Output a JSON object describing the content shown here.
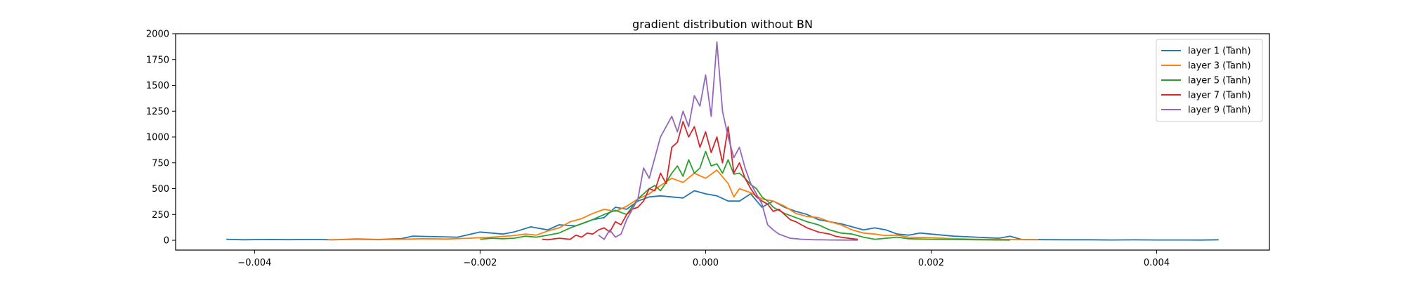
{
  "chart_data": {
    "type": "line",
    "title": "gradient distribution without BN",
    "xlabel": "",
    "ylabel": "",
    "xlim": [
      -0.0047,
      0.005
    ],
    "ylim": [
      -95,
      2000
    ],
    "xticks": [
      -0.004,
      -0.002,
      0.0,
      0.002,
      0.004
    ],
    "xtick_labels": [
      "−0.004",
      "−0.002",
      "0.000",
      "0.002",
      "0.004"
    ],
    "yticks": [
      0,
      250,
      500,
      750,
      1000,
      1250,
      1500,
      1750,
      2000
    ],
    "ytick_labels": [
      "0",
      "250",
      "500",
      "750",
      "1000",
      "1250",
      "1500",
      "1750",
      "2000"
    ],
    "grid": false,
    "legend_position": "top-right",
    "series": [
      {
        "name": "layer 1 (Tanh)",
        "color": "#1f77b4",
        "x": [
          -0.00425,
          -0.0041,
          -0.0039,
          -0.0037,
          -0.0035,
          -0.0033,
          -0.0031,
          -0.0029,
          -0.0027,
          -0.0026,
          -0.0024,
          -0.0022,
          -0.002,
          -0.0019,
          -0.0018,
          -0.0017,
          -0.00155,
          -0.0014,
          -0.0013,
          -0.00115,
          -0.001,
          -0.0009,
          -0.0008,
          -0.0007,
          -0.0006,
          -0.0005,
          -0.0004,
          -0.0003,
          -0.0002,
          -0.0001,
          0.0,
          0.0001,
          0.0002,
          0.0003,
          0.0004,
          0.0005,
          0.0006,
          0.0007,
          0.0008,
          0.0009,
          0.001,
          0.0011,
          0.0012,
          0.0013,
          0.0014,
          0.0015,
          0.0016,
          0.0017,
          0.0018,
          0.0019,
          0.002,
          0.0022,
          0.0024,
          0.0026,
          0.0027,
          0.0028,
          0.003,
          0.0032,
          0.0034,
          0.0036,
          0.0038,
          0.004,
          0.0042,
          0.0044,
          0.00455
        ],
        "y": [
          10,
          5,
          8,
          6,
          8,
          5,
          12,
          8,
          15,
          40,
          35,
          30,
          80,
          70,
          60,
          80,
          130,
          100,
          150,
          140,
          200,
          220,
          320,
          300,
          380,
          420,
          430,
          420,
          410,
          480,
          450,
          430,
          380,
          380,
          450,
          320,
          380,
          320,
          280,
          250,
          200,
          180,
          160,
          130,
          100,
          120,
          100,
          60,
          50,
          70,
          60,
          40,
          30,
          20,
          40,
          8,
          6,
          5,
          5,
          3,
          4,
          3,
          3,
          2,
          5
        ]
      },
      {
        "name": "layer 3 (Tanh)",
        "color": "#ff7f0e",
        "x": [
          -0.00335,
          -0.0031,
          -0.0029,
          -0.0027,
          -0.0025,
          -0.0023,
          -0.0021,
          -0.0019,
          -0.0017,
          -0.0016,
          -0.0015,
          -0.0014,
          -0.0013,
          -0.0012,
          -0.0011,
          -0.001,
          -0.0009,
          -0.0008,
          -0.0007,
          -0.0006,
          -0.0005,
          -0.0004,
          -0.0003,
          -0.0002,
          -0.0001,
          0.0,
          0.0001,
          0.0002,
          0.00025,
          0.0003,
          0.0004,
          0.0005,
          0.0006,
          0.0007,
          0.0008,
          0.0009,
          0.001,
          0.0011,
          0.0012,
          0.0013,
          0.0014,
          0.0015,
          0.0016,
          0.0017,
          0.0018,
          0.002,
          0.0022,
          0.0024,
          0.0026,
          0.0028,
          0.00295
        ],
        "y": [
          5,
          8,
          6,
          10,
          15,
          12,
          20,
          30,
          45,
          60,
          50,
          90,
          120,
          180,
          210,
          260,
          300,
          280,
          330,
          400,
          450,
          530,
          600,
          560,
          650,
          600,
          680,
          550,
          420,
          500,
          460,
          400,
          380,
          330,
          260,
          230,
          220,
          180,
          150,
          100,
          70,
          60,
          45,
          50,
          30,
          25,
          15,
          10,
          8,
          6,
          4
        ]
      },
      {
        "name": "layer 5 (Tanh)",
        "color": "#2ca02c",
        "x": [
          -0.002,
          -0.0019,
          -0.0018,
          -0.0017,
          -0.0016,
          -0.0015,
          -0.0014,
          -0.0013,
          -0.0012,
          -0.0011,
          -0.001,
          -0.0009,
          -0.0008,
          -0.0007,
          -0.0006,
          -0.0005,
          -0.00045,
          -0.0004,
          -0.00035,
          -0.0003,
          -0.00025,
          -0.0002,
          -0.00015,
          -0.0001,
          -5e-05,
          0.0,
          5e-05,
          0.0001,
          0.00015,
          0.0002,
          0.00025,
          0.0003,
          0.00035,
          0.0004,
          0.00045,
          0.0005,
          0.00055,
          0.0006,
          0.0007,
          0.0008,
          0.0009,
          0.001,
          0.0011,
          0.0012,
          0.0013,
          0.0014,
          0.0015,
          0.0016,
          0.0017,
          0.0018,
          0.002,
          0.0022,
          0.0024,
          0.0026,
          0.0027
        ],
        "y": [
          10,
          20,
          15,
          20,
          40,
          30,
          50,
          70,
          120,
          160,
          200,
          250,
          290,
          250,
          400,
          500,
          530,
          480,
          560,
          650,
          720,
          620,
          780,
          650,
          700,
          860,
          720,
          740,
          650,
          780,
          640,
          650,
          600,
          540,
          500,
          420,
          380,
          320,
          260,
          220,
          180,
          150,
          100,
          70,
          60,
          30,
          10,
          20,
          30,
          15,
          10,
          8,
          5,
          3,
          2
        ]
      },
      {
        "name": "layer 7 (Tanh)",
        "color": "#d62728",
        "x": [
          -0.00145,
          -0.0014,
          -0.0013,
          -0.0012,
          -0.00115,
          -0.0011,
          -0.00105,
          -0.001,
          -0.00095,
          -0.0009,
          -0.00085,
          -0.0008,
          -0.00075,
          -0.0007,
          -0.00065,
          -0.0006,
          -0.00055,
          -0.0005,
          -0.00045,
          -0.0004,
          -0.00035,
          -0.0003,
          -0.00025,
          -0.0002,
          -0.00015,
          -0.0001,
          -5e-05,
          0.0,
          5e-05,
          0.0001,
          0.00015,
          0.0002,
          0.00025,
          0.0003,
          0.00035,
          0.0004,
          0.00045,
          0.0005,
          0.00055,
          0.0006,
          0.00065,
          0.0007,
          0.00075,
          0.0008,
          0.00085,
          0.0009,
          0.00095,
          0.001,
          0.00105,
          0.0011,
          0.00115,
          0.0012,
          0.0013,
          0.00135
        ],
        "y": [
          10,
          5,
          20,
          10,
          50,
          30,
          70,
          60,
          100,
          120,
          80,
          180,
          150,
          250,
          300,
          320,
          380,
          500,
          480,
          650,
          550,
          900,
          950,
          1150,
          1000,
          1100,
          900,
          1050,
          850,
          1000,
          750,
          1100,
          650,
          750,
          600,
          500,
          420,
          380,
          350,
          280,
          300,
          250,
          200,
          180,
          150,
          120,
          100,
          80,
          70,
          60,
          40,
          30,
          15,
          10
        ]
      },
      {
        "name": "layer 9 (Tanh)",
        "color": "#9467bd",
        "x": [
          -0.00095,
          -0.0009,
          -0.00085,
          -0.0008,
          -0.00075,
          -0.0007,
          -0.00065,
          -0.0006,
          -0.00055,
          -0.0005,
          -0.00045,
          -0.0004,
          -0.00035,
          -0.0003,
          -0.00025,
          -0.0002,
          -0.00015,
          -0.0001,
          -5e-05,
          0.0,
          5e-05,
          0.0001,
          0.00015,
          0.0002,
          0.00025,
          0.0003,
          0.00035,
          0.0004,
          0.00045,
          0.0005,
          0.00055,
          0.0006,
          0.00065,
          0.0007,
          0.00075,
          0.0008,
          0.00085,
          0.0009,
          0.00095,
          0.001,
          0.00105,
          0.0011,
          0.00115,
          0.0012,
          0.0013,
          0.00135
        ],
        "y": [
          50,
          10,
          100,
          30,
          60,
          200,
          300,
          400,
          700,
          600,
          800,
          1000,
          1100,
          1200,
          1050,
          1250,
          1100,
          1400,
          1300,
          1600,
          1200,
          1920,
          1250,
          1000,
          800,
          900,
          700,
          550,
          450,
          350,
          150,
          100,
          60,
          40,
          20,
          15,
          10,
          8,
          6,
          5,
          4,
          3,
          3,
          2,
          2,
          1
        ]
      }
    ]
  }
}
